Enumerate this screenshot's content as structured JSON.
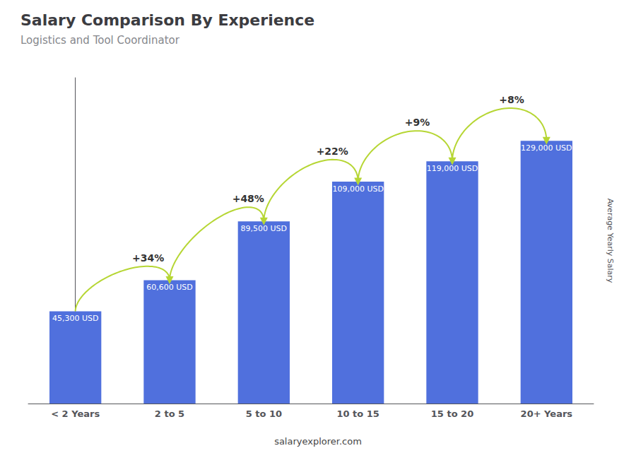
{
  "chart_data": {
    "type": "bar",
    "title": "Salary Comparison By Experience",
    "subtitle": "Logistics and Tool Coordinator",
    "categories": [
      "< 2 Years",
      "2 to 5",
      "5 to 10",
      "10 to 15",
      "15 to 20",
      "20+ Years"
    ],
    "values": [
      45300,
      60600,
      89500,
      109000,
      119000,
      129000
    ],
    "value_labels": [
      "45,300 USD",
      "60,600 USD",
      "89,500 USD",
      "109,000 USD",
      "119,000 USD",
      "129,000 USD"
    ],
    "data_labels": true,
    "annotations": [
      "+34%",
      "+48%",
      "+22%",
      "+9%",
      "+8%"
    ],
    "ylabel": "Average Yearly Salary",
    "footer": "salaryexplorer.com",
    "ylim": [
      0,
      160000
    ],
    "tick_labels": "x",
    "grid": false
  }
}
